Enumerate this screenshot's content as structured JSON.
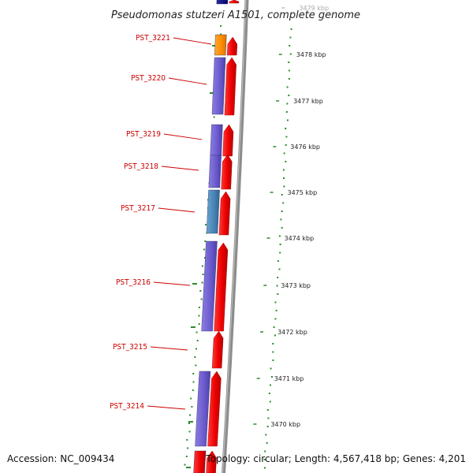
{
  "header": {
    "title": "Pseudomonas stutzeri A1501, complete genome"
  },
  "footer": {
    "accession": "Accession: NC_009434",
    "topology": "Topology: circular; Length: 4,567,418 bp; Genes: 4,201"
  },
  "colors": {
    "background": "#ffffff",
    "backbone": "#8c8c8c",
    "forward_cds": "#ee0000",
    "reverse_cds_blue": "#6a5acd",
    "reverse_cds_orange": "#ff8c00",
    "reverse_cds_steel": "#4682b4",
    "reverse_cds_navy": "#000080",
    "gc_dots": "#2e8b2e",
    "locus_labels": "#cc0000"
  },
  "scale_ticks": [
    {
      "label": "3479 kbp",
      "faded": true
    },
    {
      "label": "3478 kbp"
    },
    {
      "label": "3477 kbp"
    },
    {
      "label": "3476 kbp"
    },
    {
      "label": "3475 kbp"
    },
    {
      "label": "3474 kbp"
    },
    {
      "label": "3473 kbp"
    },
    {
      "label": "3472 kbp"
    },
    {
      "label": "3471 kbp"
    },
    {
      "label": "3470 kbp"
    }
  ],
  "loci": [
    {
      "name": "PST_3221"
    },
    {
      "name": "PST_3220"
    },
    {
      "name": "PST_3219"
    },
    {
      "name": "PST_3218"
    },
    {
      "name": "PST_3217"
    },
    {
      "name": "PST_3216"
    },
    {
      "name": "PST_3215"
    },
    {
      "name": "PST_3214"
    }
  ],
  "reverse_genes": [
    {
      "color": "navy"
    },
    {
      "color": "orange"
    },
    {
      "color": "blue"
    },
    {
      "color": "blue"
    },
    {
      "color": "blue"
    },
    {
      "color": "steel"
    },
    {
      "color": "blue"
    },
    {
      "color": "blue"
    },
    {
      "color": "red"
    }
  ],
  "forward_genes": [
    {
      "color": "red"
    },
    {
      "color": "red"
    },
    {
      "color": "red"
    },
    {
      "color": "red"
    },
    {
      "color": "red"
    },
    {
      "color": "red"
    },
    {
      "color": "red"
    },
    {
      "color": "red"
    },
    {
      "color": "red"
    },
    {
      "color": "red"
    }
  ]
}
